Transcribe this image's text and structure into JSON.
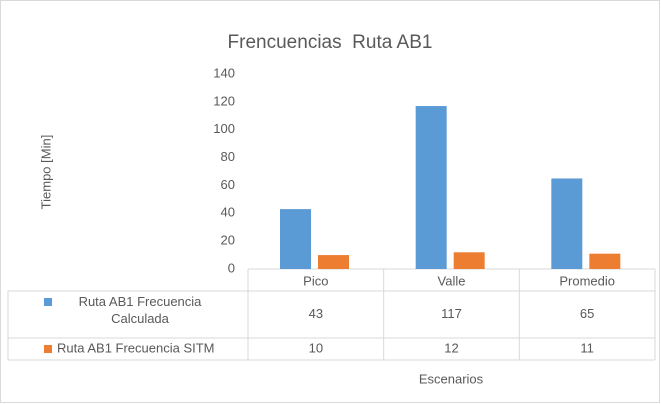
{
  "chart_data": {
    "type": "bar",
    "title": "Frencuencias  Ruta AB1",
    "y_label": "Tiempo [Min]",
    "x_label": "Escenarios",
    "categories": [
      "Pico",
      "Valle",
      "Promedio"
    ],
    "series": [
      {
        "name": "Ruta AB1 Frecuencia Calculada",
        "color": "#5b9bd5",
        "values": [
          43,
          117,
          65
        ]
      },
      {
        "name": "Ruta AB1 Frecuencia SITM",
        "color": "#ed7d31",
        "values": [
          10,
          12,
          11
        ]
      }
    ],
    "ylim": [
      0,
      140
    ],
    "yticks": [
      0,
      20,
      40,
      60,
      80,
      100,
      120,
      140
    ],
    "grid": false
  }
}
